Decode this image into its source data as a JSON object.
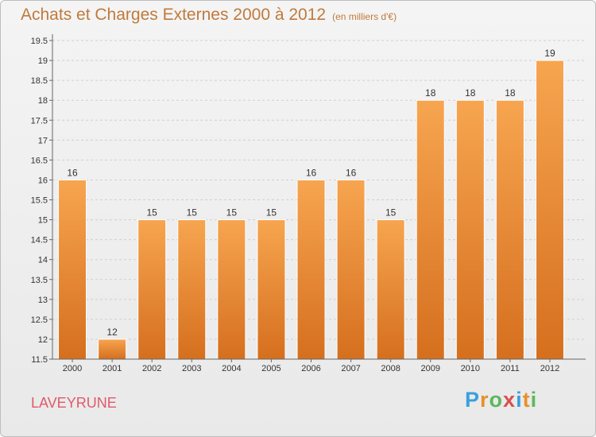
{
  "header": {
    "title": "Achats et Charges Externes 2000 à 2012",
    "unit": "(en milliers d'€)"
  },
  "footer": {
    "commune": "LAVEYRUNE",
    "logo_letters": [
      "P",
      "r",
      "o",
      "x",
      "i",
      "t",
      "i"
    ],
    "logo_colors": [
      "#3aa0dc",
      "#e8902a",
      "#5cb85c",
      "#d94f4f",
      "#3aa0dc",
      "#e8902a",
      "#5cb85c"
    ]
  },
  "chart_data": {
    "type": "bar",
    "title": "Achats et Charges Externes 2000 à 2012",
    "unit": "(en milliers d'€)",
    "categories": [
      "2000",
      "2001",
      "2002",
      "2003",
      "2004",
      "2005",
      "2006",
      "2007",
      "2008",
      "2009",
      "2010",
      "2011",
      "2012"
    ],
    "values": [
      16,
      12,
      15,
      15,
      15,
      15,
      16,
      16,
      15,
      18,
      18,
      18,
      19
    ],
    "value_labels": [
      "16",
      "12",
      "15",
      "15",
      "15",
      "15",
      "16",
      "16",
      "15",
      "18",
      "18",
      "18",
      "19"
    ],
    "ylim": [
      11.5,
      19.5
    ],
    "yticks": [
      11.5,
      12,
      12.5,
      13,
      13.5,
      14,
      14.5,
      15,
      15.5,
      16,
      16.5,
      17,
      17.5,
      18,
      18.5,
      19,
      19.5
    ],
    "ytick_labels": [
      "11.5",
      "12",
      "12.5",
      "13",
      "13.5",
      "14",
      "14.5",
      "15",
      "15.5",
      "16",
      "16.5",
      "17",
      "17.5",
      "18",
      "18.5",
      "19",
      "19.5"
    ],
    "grid": true,
    "colors": {
      "bar_top": "#f7a550",
      "bar_bottom": "#d56f1e",
      "grid": "#cfcfcf",
      "axis": "#666666"
    }
  }
}
